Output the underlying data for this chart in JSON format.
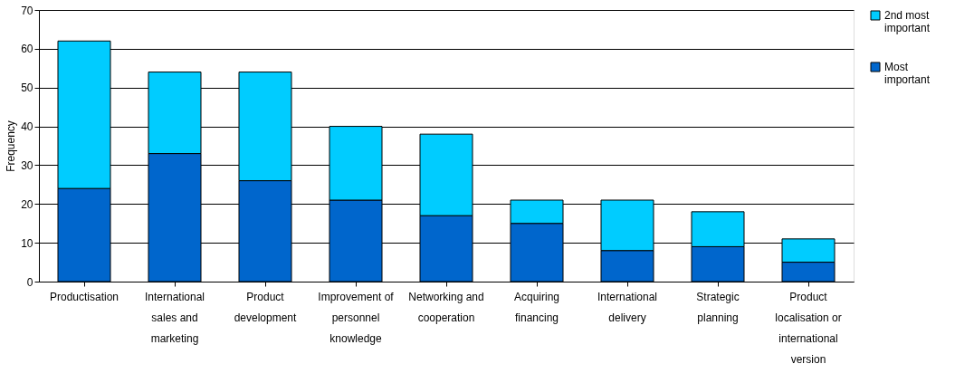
{
  "chart_data": {
    "type": "bar",
    "stacked": true,
    "ylabel": "Frequency",
    "categories": [
      "Productisation",
      "International sales and marketing",
      "Product development",
      "Improvement of personnel knowledge",
      "Networking and cooperation",
      "Acquiring financing",
      "International delivery",
      "Strategic planning",
      "Product localisation or international version"
    ],
    "series": [
      {
        "name": "Most important",
        "color": "#0066cc",
        "values": [
          24,
          33,
          26,
          21,
          17,
          15,
          8,
          9,
          5
        ]
      },
      {
        "name": "2nd most important",
        "color": "#00ccff",
        "values": [
          38,
          21,
          28,
          19,
          21,
          6,
          13,
          9,
          6
        ]
      }
    ],
    "ylim": [
      0,
      70
    ],
    "yticks": [
      0,
      10,
      20,
      30,
      40,
      50,
      60,
      70
    ],
    "grid": "y",
    "legend": "right"
  }
}
